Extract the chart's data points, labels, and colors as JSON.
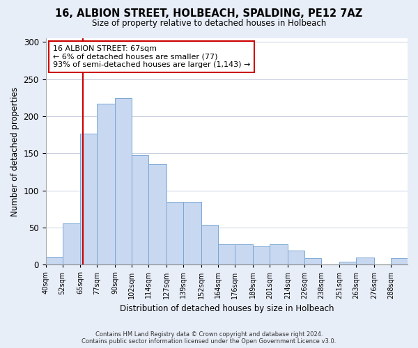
{
  "title": "16, ALBION STREET, HOLBEACH, SPALDING, PE12 7AZ",
  "subtitle": "Size of property relative to detached houses in Holbeach",
  "xlabel": "Distribution of detached houses by size in Holbeach",
  "ylabel": "Number of detached properties",
  "bin_labels": [
    "40sqm",
    "52sqm",
    "65sqm",
    "77sqm",
    "90sqm",
    "102sqm",
    "114sqm",
    "127sqm",
    "139sqm",
    "152sqm",
    "164sqm",
    "176sqm",
    "189sqm",
    "201sqm",
    "214sqm",
    "226sqm",
    "238sqm",
    "251sqm",
    "263sqm",
    "276sqm",
    "288sqm"
  ],
  "bar_heights": [
    11,
    56,
    177,
    217,
    224,
    147,
    135,
    85,
    85,
    54,
    27,
    27,
    25,
    27,
    19,
    9,
    0,
    4,
    10,
    0,
    9
  ],
  "bar_color": "#c8d8f0",
  "bar_edge_color": "#7ba7d4",
  "property_line_x": 67,
  "annotation_line1": "16 ALBION STREET: 67sqm",
  "annotation_line2": "← 6% of detached houses are smaller (77)",
  "annotation_line3": "93% of semi-detached houses are larger (1,143) →",
  "annotation_box_color": "#ffffff",
  "annotation_box_edge": "#cc0000",
  "line_color": "#cc0000",
  "ylim": [
    0,
    305
  ],
  "yticks": [
    0,
    50,
    100,
    150,
    200,
    250,
    300
  ],
  "footer1": "Contains HM Land Registry data © Crown copyright and database right 2024.",
  "footer2": "Contains public sector information licensed under the Open Government Licence v3.0.",
  "bg_color": "#e8eef8",
  "plot_bg_color": "#ffffff",
  "grid_color": "#c8d0e0"
}
